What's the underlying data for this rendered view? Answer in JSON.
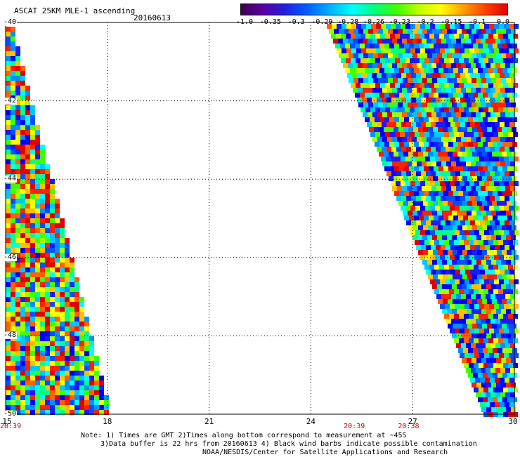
{
  "header": {
    "title": "ASCAT 25KM MLE-1 ascending",
    "date": "20160613"
  },
  "colorbar": {
    "ticks": [
      "-1.0",
      "-0.35",
      "-0.3",
      "-0.29",
      "-0.28",
      "-0.26",
      "-0.23",
      "-0.2",
      "-0.15",
      "-0.1",
      "0.0"
    ],
    "colors": [
      "#3a0050",
      "#5a00a0",
      "#2020e0",
      "#0060ff",
      "#00b0ff",
      "#00ffff",
      "#00ff80",
      "#40ff00",
      "#c0ff00",
      "#ffff00",
      "#ffa000",
      "#ff4000",
      "#e00000"
    ]
  },
  "map": {
    "lat_labels": [
      "-40",
      "-42",
      "-44",
      "-46",
      "-48",
      "-50"
    ],
    "lon_labels": [
      "15",
      "18",
      "21",
      "24",
      "27",
      "30"
    ],
    "pass_times": [
      {
        "lon": 15,
        "time": "20:39"
      },
      {
        "lon": 25.3,
        "time": "20:39"
      },
      {
        "lon": 26.9,
        "time": "20:38"
      }
    ]
  },
  "notes": [
    "Note: 1) Times are GMT 2)Times along bottom correspond to measurement at ~45S",
    "3)Data buffer is 22 hrs from 20160613 4) Black wind barbs indicate possible contamination",
    "NOAA/NESDIS/Center for Satellite Applications and Research"
  ]
}
